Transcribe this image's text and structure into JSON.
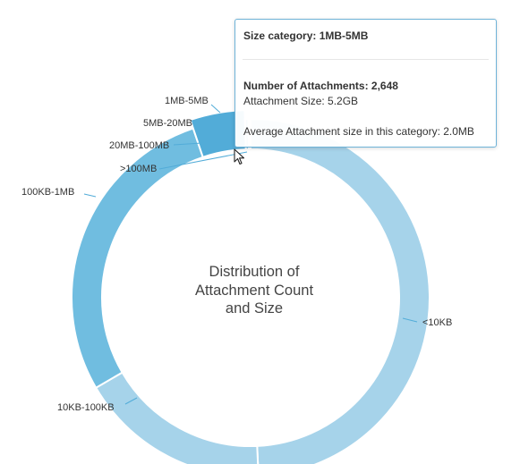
{
  "chart_data": {
    "type": "pie",
    "donut": true,
    "title": "Distribution of Attachment Count and Size",
    "title_lines": [
      "Distribution of",
      "Attachment Count",
      "and Size"
    ],
    "slices": [
      {
        "label": "<10KB",
        "value": 49.3,
        "color": "#a6d3ea"
      },
      {
        "label": "10KB-100KB",
        "value": 17.3,
        "color": "#a6d3ea"
      },
      {
        "label": "100KB-1MB",
        "value": 28.2,
        "color": "#70bde0"
      },
      {
        "label": "1MB-5MB",
        "value": 4.7,
        "color": "#52acd8",
        "highlighted": true
      },
      {
        "label": "5MB-20MB",
        "value": 0.3,
        "color": "#70bde0"
      },
      {
        "label": "20MB-100MB",
        "value": 0.1,
        "color": "#70bde0"
      },
      {
        "label": ">100MB",
        "value": 0.1,
        "color": "#70bde0"
      }
    ]
  },
  "tooltip": {
    "title": "Size category: 1MB-5MB",
    "count_text": "Number of Attachments: 2,648",
    "size_text": "Attachment Size: 5.2GB",
    "avg_text": "Average Attachment size in this category: 2.0MB"
  },
  "colors": {
    "border": "#ffffff",
    "connector": "#52acd8",
    "label_text": "#333333"
  }
}
